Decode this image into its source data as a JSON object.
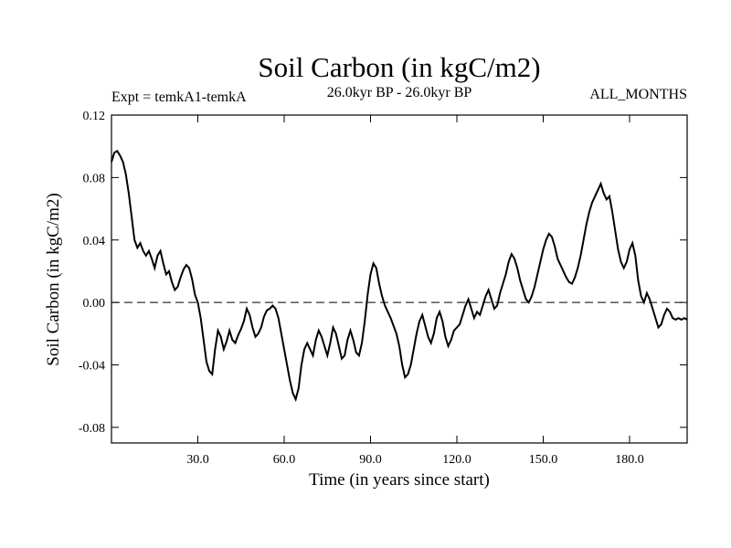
{
  "chart_data": {
    "type": "line",
    "title": "Soil Carbon (in kgC/m2)",
    "left_note": "Expt = temkA1-temkA",
    "center_note": "26.0kyr BP - 26.0kyr BP",
    "right_note": "ALL_MONTHS",
    "xlabel": "Time (in years since start)",
    "ylabel": "Soil Carbon (in kgC/m2)",
    "xlim": [
      0,
      200
    ],
    "ylim": [
      -0.09,
      0.12
    ],
    "xticks": [
      30,
      60,
      90,
      120,
      150,
      180
    ],
    "xtick_labels": [
      "30.0",
      "60.0",
      "90.0",
      "120.0",
      "150.0",
      "180.0"
    ],
    "yticks": [
      0.12,
      0.08,
      0.04,
      0.0,
      -0.04,
      -0.08
    ],
    "ytick_labels": [
      "0.12",
      "0.08",
      "0.04",
      "0.00",
      "-0.04",
      "-0.08"
    ],
    "reference_line": 0.0,
    "series": [
      {
        "name": "temkA1-temkA",
        "x": [
          0,
          1,
          2,
          3,
          4,
          5,
          6,
          7,
          8,
          9,
          10,
          11,
          12,
          13,
          14,
          15,
          16,
          17,
          18,
          19,
          20,
          21,
          22,
          23,
          24,
          25,
          26,
          27,
          28,
          29,
          30,
          31,
          32,
          33,
          34,
          35,
          36,
          37,
          38,
          39,
          40,
          41,
          42,
          43,
          44,
          45,
          46,
          47,
          48,
          49,
          50,
          51,
          52,
          53,
          54,
          55,
          56,
          57,
          58,
          59,
          60,
          61,
          62,
          63,
          64,
          65,
          66,
          67,
          68,
          69,
          70,
          71,
          72,
          73,
          74,
          75,
          76,
          77,
          78,
          79,
          80,
          81,
          82,
          83,
          84,
          85,
          86,
          87,
          88,
          89,
          90,
          91,
          92,
          93,
          94,
          95,
          96,
          97,
          98,
          99,
          100,
          101,
          102,
          103,
          104,
          105,
          106,
          107,
          108,
          109,
          110,
          111,
          112,
          113,
          114,
          115,
          116,
          117,
          118,
          119,
          120,
          121,
          122,
          123,
          124,
          125,
          126,
          127,
          128,
          129,
          130,
          131,
          132,
          133,
          134,
          135,
          136,
          137,
          138,
          139,
          140,
          141,
          142,
          143,
          144,
          145,
          146,
          147,
          148,
          149,
          150,
          151,
          152,
          153,
          154,
          155,
          156,
          157,
          158,
          159,
          160,
          161,
          162,
          163,
          164,
          165,
          166,
          167,
          168,
          169,
          170,
          171,
          172,
          173,
          174,
          175,
          176,
          177,
          178,
          179,
          180,
          181,
          182,
          183,
          184,
          185,
          186,
          187,
          188,
          189,
          190,
          191,
          192,
          193,
          194,
          195,
          196,
          197,
          198,
          199,
          200
        ],
        "values": [
          0.09,
          0.096,
          0.097,
          0.094,
          0.09,
          0.082,
          0.07,
          0.055,
          0.04,
          0.035,
          0.038,
          0.033,
          0.03,
          0.033,
          0.028,
          0.022,
          0.03,
          0.033,
          0.025,
          0.018,
          0.02,
          0.013,
          0.008,
          0.01,
          0.016,
          0.021,
          0.024,
          0.022,
          0.015,
          0.005,
          0.0,
          -0.01,
          -0.024,
          -0.038,
          -0.044,
          -0.046,
          -0.03,
          -0.018,
          -0.022,
          -0.03,
          -0.025,
          -0.018,
          -0.024,
          -0.026,
          -0.021,
          -0.017,
          -0.012,
          -0.004,
          -0.008,
          -0.016,
          -0.022,
          -0.02,
          -0.016,
          -0.009,
          -0.005,
          -0.004,
          -0.002,
          -0.004,
          -0.01,
          -0.02,
          -0.03,
          -0.04,
          -0.05,
          -0.058,
          -0.062,
          -0.055,
          -0.04,
          -0.03,
          -0.026,
          -0.03,
          -0.034,
          -0.024,
          -0.018,
          -0.022,
          -0.028,
          -0.034,
          -0.026,
          -0.016,
          -0.02,
          -0.028,
          -0.036,
          -0.034,
          -0.024,
          -0.018,
          -0.024,
          -0.032,
          -0.034,
          -0.026,
          -0.012,
          0.005,
          0.018,
          0.025,
          0.022,
          0.012,
          0.004,
          -0.002,
          -0.006,
          -0.01,
          -0.015,
          -0.02,
          -0.028,
          -0.04,
          -0.048,
          -0.046,
          -0.04,
          -0.03,
          -0.02,
          -0.012,
          -0.008,
          -0.015,
          -0.022,
          -0.026,
          -0.02,
          -0.01,
          -0.006,
          -0.012,
          -0.022,
          -0.028,
          -0.024,
          -0.018,
          -0.016,
          -0.014,
          -0.008,
          -0.002,
          0.002,
          -0.004,
          -0.01,
          -0.006,
          -0.008,
          -0.002,
          0.004,
          0.008,
          0.002,
          -0.004,
          -0.002,
          0.006,
          0.012,
          0.018,
          0.026,
          0.031,
          0.028,
          0.022,
          0.014,
          0.008,
          0.002,
          0.0,
          0.004,
          0.01,
          0.018,
          0.026,
          0.034,
          0.04,
          0.044,
          0.042,
          0.036,
          0.028,
          0.024,
          0.02,
          0.016,
          0.013,
          0.012,
          0.016,
          0.022,
          0.03,
          0.04,
          0.05,
          0.058,
          0.064,
          0.068,
          0.072,
          0.076,
          0.07,
          0.066,
          0.068,
          0.058,
          0.046,
          0.034,
          0.026,
          0.022,
          0.026,
          0.034,
          0.038,
          0.03,
          0.014,
          0.004,
          0.0,
          0.006,
          0.002,
          -0.004,
          -0.01,
          -0.016,
          -0.014,
          -0.008,
          -0.004,
          -0.006,
          -0.01,
          -0.011,
          -0.01,
          -0.011,
          -0.01,
          -0.011
        ]
      }
    ]
  }
}
